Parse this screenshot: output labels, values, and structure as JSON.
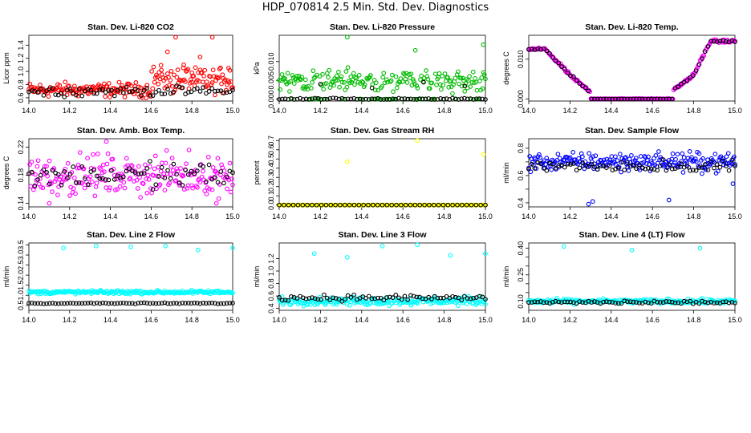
{
  "title": "HDP_070814  2.5 Min. Std. Dev. Diagnostics",
  "colors": {
    "axis": "#000000",
    "black_series": "#000000"
  },
  "chart_data": [
    {
      "type": "scatter",
      "title": "Stan. Dev. Li-820 CO2",
      "ylabel": "Licor ppm",
      "xlim": [
        14.0,
        15.0
      ],
      "ylim": [
        0.55,
        1.55
      ],
      "xticks": [
        "14.0",
        "14.2",
        "14.4",
        "14.6",
        "14.8",
        "15.0"
      ],
      "yticks": [
        0.6,
        0.8,
        1.0,
        1.2,
        1.4
      ],
      "ytick_labels": [
        "0.6",
        "0.8",
        "1.0",
        "1.2",
        "1.4"
      ],
      "series": [
        {
          "name": "main",
          "color": "#ff0000",
          "base": 0.72,
          "spread": 0.1,
          "x": [
            14.65,
            14.68,
            14.72,
            14.76,
            14.8,
            14.84,
            14.9,
            14.95,
            14.98
          ],
          "values": [
            1.02,
            1.3,
            1.52,
            1.1,
            0.98,
            1.22,
            1.52,
            0.95,
            1.05
          ]
        },
        {
          "name": "black",
          "color": "#000000",
          "base": 0.7,
          "spread": 0.07,
          "x": [],
          "values": []
        }
      ]
    },
    {
      "type": "scatter",
      "title": "Stan. Dev. Li-820 Pressure",
      "ylabel": "kPa",
      "xlim": [
        14.0,
        15.0
      ],
      "ylim": [
        -0.0005,
        0.017
      ],
      "xticks": [
        "14.0",
        "14.2",
        "14.4",
        "14.6",
        "14.8",
        "15.0"
      ],
      "yticks": [
        0.0,
        0.005,
        0.01
      ],
      "ytick_labels": [
        "0.000",
        "0.005",
        "0.010"
      ],
      "series": [
        {
          "name": "main",
          "color": "#00bb00",
          "base": 0.005,
          "spread": 0.0028,
          "x": [
            14.33,
            14.66,
            14.99
          ],
          "values": [
            0.0165,
            0.013,
            0.0145
          ]
        },
        {
          "name": "black",
          "color": "#000000",
          "base": 0.0,
          "spread": 0.0003,
          "x": [
            14.2,
            14.45,
            14.7,
            14.9
          ],
          "values": [
            0.004,
            0.003,
            0.0045,
            0.0035
          ]
        }
      ]
    },
    {
      "type": "scatter",
      "title": "Stan. Dev. Li-820 Temp.",
      "ylabel": "degrees C",
      "xlim": [
        14.0,
        15.0
      ],
      "ylim": [
        -0.0005,
        0.016
      ],
      "xticks": [
        "14.0",
        "14.2",
        "14.4",
        "14.6",
        "14.8",
        "15.0"
      ],
      "yticks": [
        0.0,
        0.01
      ],
      "ytick_labels": [
        "0.000",
        "0.010"
      ],
      "series": [
        {
          "name": "main",
          "color": "#ff00ff",
          "base": 0.0,
          "spread": 0.0006,
          "x": [],
          "values": []
        },
        {
          "name": "black",
          "color": "#000000",
          "base": 0.0,
          "spread": 0.0004,
          "x": [],
          "values": []
        }
      ],
      "curve": {
        "x": [
          14.0,
          14.08,
          14.2,
          14.28,
          14.35,
          14.65,
          14.72,
          14.8,
          14.88,
          15.0
        ],
        "values": [
          0.0125,
          0.0125,
          0.006,
          0.0025,
          0.0,
          0.0,
          0.003,
          0.006,
          0.0145,
          0.0145
        ]
      }
    },
    {
      "type": "scatter",
      "title": "Stan. Dev. Amb. Box Temp.",
      "ylabel": "degrees C",
      "xlim": [
        14.0,
        15.0
      ],
      "ylim": [
        0.135,
        0.232
      ],
      "xticks": [
        "14.0",
        "14.2",
        "14.4",
        "14.6",
        "14.8",
        "15.0"
      ],
      "yticks": [
        0.14,
        0.18,
        0.22
      ],
      "ytick_labels": [
        "0.14",
        "0.18",
        "0.22"
      ],
      "series": [
        {
          "name": "main",
          "color": "#ff00ff",
          "base": 0.18,
          "spread": 0.025,
          "x": [
            14.38,
            14.1,
            14.92
          ],
          "values": [
            0.228,
            0.14,
            0.14
          ]
        },
        {
          "name": "black",
          "color": "#000000",
          "base": 0.18,
          "spread": 0.02,
          "x": [],
          "values": []
        }
      ]
    },
    {
      "type": "scatter",
      "title": "Stan. Dev. Gas Stream RH",
      "ylabel": "percent",
      "xlim": [
        14.0,
        15.0
      ],
      "ylim": [
        -0.02,
        0.72
      ],
      "xticks": [
        "14.0",
        "14.2",
        "14.4",
        "14.6",
        "14.8",
        "15.0"
      ],
      "yticks": [
        0.0,
        0.1,
        0.2,
        0.3,
        0.4,
        0.5,
        0.6,
        0.7
      ],
      "ytick_labels": [
        "0.0",
        "0.1",
        "0.2",
        "0.3",
        "0.4",
        "0.5",
        "0.6",
        "0.7"
      ],
      "series": [
        {
          "name": "main",
          "color": "#ffff00",
          "base": 0.0,
          "spread": 0.0,
          "x": [
            14.33,
            14.67,
            14.99
          ],
          "values": [
            0.47,
            0.7,
            0.55
          ]
        },
        {
          "name": "black",
          "color": "#000000",
          "base": 0.0,
          "spread": 0.0,
          "x": [],
          "values": []
        }
      ]
    },
    {
      "type": "scatter",
      "title": "Stan. Dev. Sample Flow",
      "ylabel": "ml/min",
      "xlim": [
        14.0,
        15.0
      ],
      "ylim": [
        0.37,
        0.87
      ],
      "xticks": [
        "14.0",
        "14.2",
        "14.4",
        "14.6",
        "14.8",
        "15.0"
      ],
      "yticks": [
        0.4,
        0.5,
        0.6,
        0.7,
        0.8
      ],
      "ytick_labels": [
        "0.4",
        "",
        "0.6",
        "",
        "0.8"
      ],
      "series": [
        {
          "name": "main",
          "color": "#0000ff",
          "base": 0.7,
          "spread": 0.06,
          "x": [
            14.29,
            14.31,
            14.68,
            14.99
          ],
          "values": [
            0.39,
            0.41,
            0.42,
            0.54
          ]
        },
        {
          "name": "black",
          "color": "#000000",
          "base": 0.67,
          "spread": 0.05,
          "x": [],
          "values": []
        }
      ]
    },
    {
      "type": "scatter",
      "title": "Stan. Dev. Line 2 Flow",
      "ylabel": "ml/min",
      "xlim": [
        14.0,
        15.0
      ],
      "ylim": [
        0.25,
        3.6
      ],
      "xticks": [
        "14.0",
        "14.2",
        "14.4",
        "14.6",
        "14.8",
        "15.0"
      ],
      "yticks": [
        0.5,
        1.0,
        1.5,
        2.0,
        2.5,
        3.0,
        3.5
      ],
      "ytick_labels": [
        "0.5",
        "1.0",
        "1.5",
        "2.0",
        "2.5",
        "3.0",
        "3.5"
      ],
      "series": [
        {
          "name": "main",
          "color": "#00ffff",
          "base": 1.15,
          "spread": 0.08,
          "x": [
            14.17,
            14.33,
            14.5,
            14.67,
            14.83,
            15.0
          ],
          "values": [
            3.35,
            3.45,
            3.4,
            3.45,
            3.25,
            3.35
          ]
        },
        {
          "name": "black",
          "color": "#000000",
          "base": 0.6,
          "spread": 0.03,
          "x": [],
          "values": []
        }
      ]
    },
    {
      "type": "scatter",
      "title": "Stan. Dev. Line 3 Flow",
      "ylabel": "ml/min",
      "xlim": [
        14.0,
        15.0
      ],
      "ylim": [
        0.37,
        1.45
      ],
      "xticks": [
        "14.0",
        "14.2",
        "14.4",
        "14.6",
        "14.8",
        "15.0"
      ],
      "yticks": [
        0.4,
        0.6,
        0.8,
        1.0,
        1.2
      ],
      "ytick_labels": [
        "0.4",
        "0.6",
        "0.8",
        "1.0",
        "1.2"
      ],
      "series": [
        {
          "name": "main",
          "color": "#00ffff",
          "base": 0.52,
          "spread": 0.06,
          "x": [
            14.17,
            14.33,
            14.5,
            14.67,
            14.83,
            15.0
          ],
          "values": [
            1.28,
            1.22,
            1.4,
            1.42,
            1.25,
            1.28
          ]
        },
        {
          "name": "black",
          "color": "#000000",
          "base": 0.57,
          "spread": 0.05,
          "x": [],
          "values": []
        }
      ]
    },
    {
      "type": "scatter",
      "title": "Stan. Dev. Line 4 (LT) Flow",
      "ylabel": "ml/min",
      "xlim": [
        14.0,
        15.0
      ],
      "ylim": [
        0.05,
        0.43
      ],
      "xticks": [
        "14.0",
        "14.2",
        "14.4",
        "14.6",
        "14.8",
        "15.0"
      ],
      "yticks": [
        0.1,
        0.15,
        0.2,
        0.25,
        0.3,
        0.35,
        0.4
      ],
      "ytick_labels": [
        "0.10",
        "",
        "",
        "0.25",
        "",
        "",
        "0.40"
      ],
      "series": [
        {
          "name": "main",
          "color": "#00ffff",
          "base": 0.1,
          "spread": 0.012,
          "x": [
            14.17,
            14.5,
            14.83
          ],
          "values": [
            0.41,
            0.39,
            0.4
          ]
        },
        {
          "name": "black",
          "color": "#000000",
          "base": 0.095,
          "spread": 0.01,
          "x": [],
          "values": []
        }
      ]
    }
  ]
}
